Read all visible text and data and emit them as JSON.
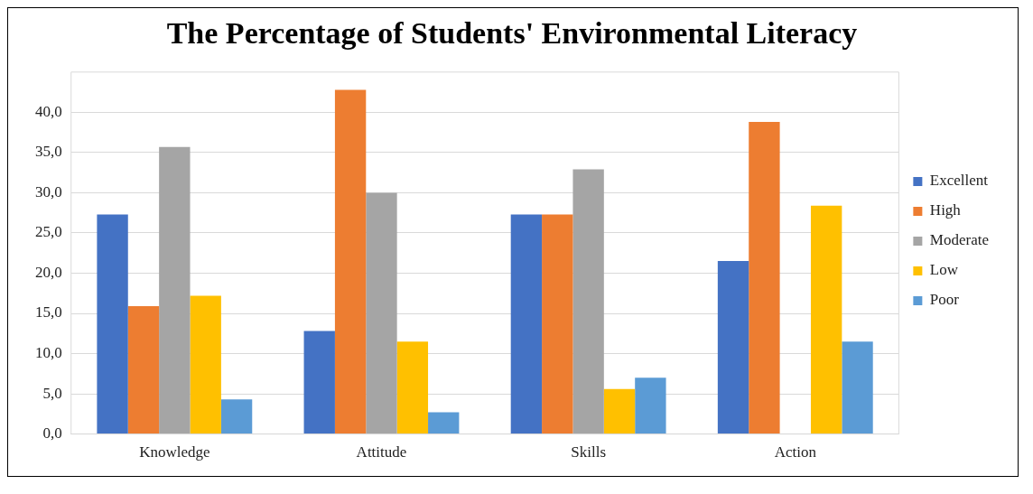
{
  "chart_data": {
    "type": "bar",
    "title": "The Percentage of Students' Environmental Literacy",
    "categories": [
      "Knowledge",
      "Attitude",
      "Skills",
      "Action"
    ],
    "series": [
      {
        "name": "Excellent",
        "color": "#4472c4",
        "values": [
          27.3,
          12.8,
          27.3,
          21.5
        ]
      },
      {
        "name": "High",
        "color": "#ed7d31",
        "values": [
          15.9,
          42.8,
          27.3,
          38.8
        ]
      },
      {
        "name": "Moderate",
        "color": "#a5a5a5",
        "values": [
          35.7,
          30.0,
          32.9,
          0
        ]
      },
      {
        "name": "Low",
        "color": "#ffc000",
        "values": [
          17.2,
          11.5,
          5.6,
          28.4
        ]
      },
      {
        "name": "Poor",
        "color": "#5b9bd5",
        "values": [
          4.3,
          2.7,
          7.0,
          11.5
        ]
      }
    ],
    "ylim": [
      0,
      45
    ],
    "yticks": [
      {
        "value": 0,
        "label": "0,0"
      },
      {
        "value": 5,
        "label": "5,0"
      },
      {
        "value": 10,
        "label": "10,0"
      },
      {
        "value": 15,
        "label": "15,0"
      },
      {
        "value": 20,
        "label": "20,0"
      },
      {
        "value": 25,
        "label": "25,0"
      },
      {
        "value": 30,
        "label": "30,0"
      },
      {
        "value": 35,
        "label": "35,0"
      },
      {
        "value": 40,
        "label": "40,0"
      }
    ],
    "grid": "y",
    "legend": "right"
  }
}
